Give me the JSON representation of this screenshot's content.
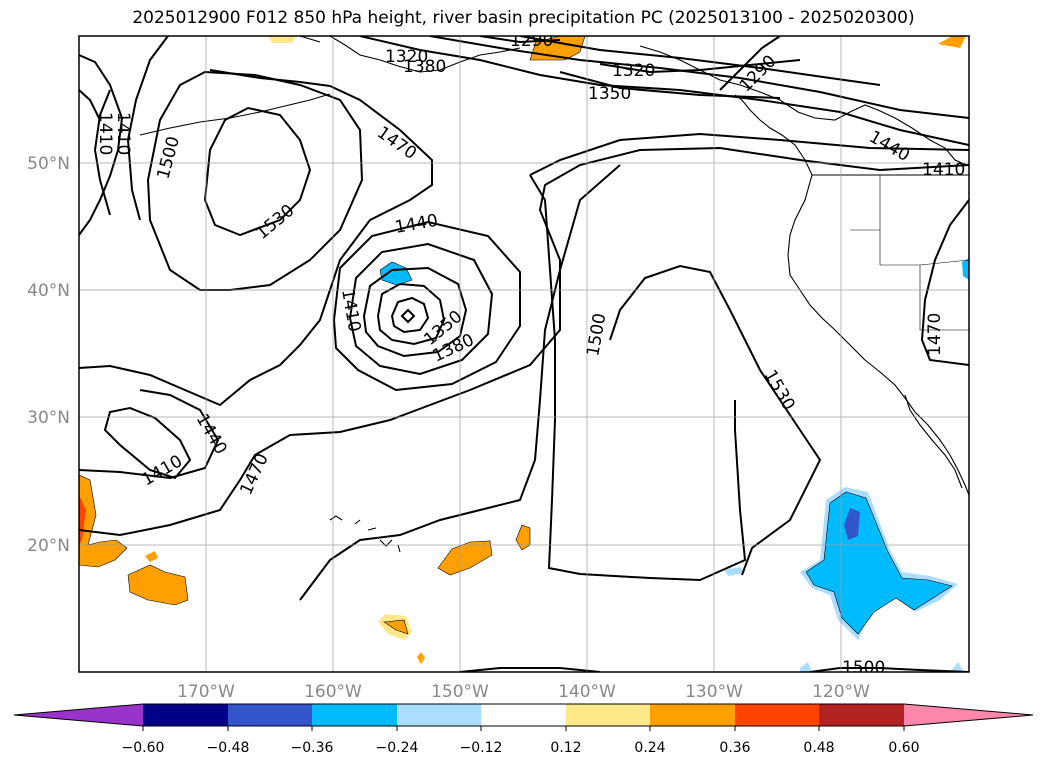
{
  "title": "2025012900 F012 850 hPa height, river basin precipitation PC (2025013100 - 2025020300)",
  "map": {
    "lon_range": [
      -180,
      -110
    ],
    "lat_range": [
      10,
      60
    ],
    "gridlines": true,
    "lon_labels": [
      "170°W",
      "160°W",
      "150°W",
      "140°W",
      "130°W",
      "120°W"
    ],
    "lat_labels": [
      "50°N",
      "40°N",
      "30°N",
      "20°N"
    ],
    "contour_labels": [
      "1290",
      "1290",
      "1320",
      "1320",
      "1350",
      "1380",
      "1410",
      "1410",
      "1440",
      "1410",
      "1470",
      "1500",
      "1530",
      "1440",
      "1410",
      "1350",
      "1380",
      "1440",
      "1410",
      "1470",
      "1500",
      "1530",
      "1470",
      "1500"
    ]
  },
  "colorbar": {
    "ticks": [
      "−0.60",
      "−0.48",
      "−0.36",
      "−0.24",
      "−0.12",
      "0.12",
      "0.24",
      "0.36",
      "0.48",
      "0.60"
    ],
    "colors": [
      "#9933cc",
      "#000088",
      "#3355cc",
      "#00bbff",
      "#aaddff",
      "#ffffff",
      "#ffe88a",
      "#ffa000",
      "#ff4400",
      "#b22222",
      "#ff88aa"
    ]
  }
}
